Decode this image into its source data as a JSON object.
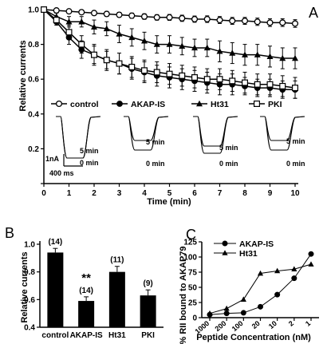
{
  "chart_data": [
    {
      "panel": "A",
      "type": "line",
      "xlabel": "Time (min)",
      "ylabel": "Relative currents",
      "xlim": [
        0,
        10
      ],
      "ylim": [
        0,
        1.0
      ],
      "xticks": [
        "0",
        "1",
        "2",
        "3",
        "4",
        "5",
        "6",
        "7",
        "8",
        "9",
        "10"
      ],
      "yticks": [
        "0.2",
        "0.4",
        "0.6",
        "0.8",
        "1.0"
      ],
      "series": [
        {
          "name": "control",
          "marker": "open-circle",
          "x": [
            0,
            0.5,
            1,
            1.5,
            2,
            2.5,
            3,
            3.5,
            4,
            4.5,
            5,
            5.5,
            6,
            6.5,
            7,
            7.5,
            8,
            8.5,
            9,
            9.5,
            10
          ],
          "y": [
            1.0,
            0.995,
            0.99,
            0.985,
            0.98,
            0.975,
            0.97,
            0.965,
            0.96,
            0.955,
            0.955,
            0.95,
            0.945,
            0.945,
            0.94,
            0.935,
            0.935,
            0.93,
            0.925,
            0.925,
            0.92
          ],
          "err": [
            0,
            0.01,
            0.01,
            0.012,
            0.012,
            0.014,
            0.014,
            0.015,
            0.016,
            0.016,
            0.017,
            0.018,
            0.018,
            0.019,
            0.02,
            0.02,
            0.02,
            0.021,
            0.022,
            0.022,
            0.022
          ]
        },
        {
          "name": "AKAP-IS",
          "marker": "filled-circle",
          "x": [
            0,
            0.5,
            1,
            1.5,
            2,
            2.5,
            3,
            3.5,
            4,
            4.5,
            5,
            5.5,
            6,
            6.5,
            7,
            7.5,
            8,
            8.5,
            9,
            9.5,
            10
          ],
          "y": [
            1.0,
            0.93,
            0.84,
            0.77,
            0.74,
            0.71,
            0.69,
            0.66,
            0.64,
            0.62,
            0.61,
            0.6,
            0.59,
            0.58,
            0.57,
            0.57,
            0.56,
            0.55,
            0.55,
            0.54,
            0.54
          ],
          "err": [
            0,
            0.02,
            0.04,
            0.05,
            0.05,
            0.05,
            0.06,
            0.06,
            0.06,
            0.06,
            0.06,
            0.06,
            0.06,
            0.06,
            0.06,
            0.06,
            0.05,
            0.05,
            0.05,
            0.05,
            0.05
          ]
        },
        {
          "name": "Ht31",
          "marker": "filled-triangle",
          "x": [
            0,
            0.5,
            1,
            1.5,
            2,
            2.5,
            3,
            3.5,
            4,
            4.5,
            5,
            5.5,
            6,
            6.5,
            7,
            7.5,
            8,
            8.5,
            9,
            9.5,
            10
          ],
          "y": [
            1.0,
            0.96,
            0.93,
            0.93,
            0.9,
            0.89,
            0.86,
            0.84,
            0.82,
            0.8,
            0.8,
            0.79,
            0.78,
            0.78,
            0.76,
            0.75,
            0.74,
            0.74,
            0.73,
            0.72,
            0.72
          ],
          "err": [
            0,
            0.02,
            0.03,
            0.03,
            0.04,
            0.04,
            0.05,
            0.05,
            0.05,
            0.05,
            0.05,
            0.05,
            0.05,
            0.05,
            0.06,
            0.06,
            0.06,
            0.06,
            0.06,
            0.06,
            0.06
          ]
        },
        {
          "name": "PKI",
          "marker": "open-square",
          "x": [
            0,
            0.5,
            1,
            1.5,
            2,
            2.5,
            3,
            3.5,
            4,
            4.5,
            5,
            5.5,
            6,
            6.5,
            7,
            7.5,
            8,
            8.5,
            9,
            9.5,
            10
          ],
          "y": [
            1.0,
            0.94,
            0.87,
            0.8,
            0.74,
            0.71,
            0.69,
            0.67,
            0.65,
            0.64,
            0.63,
            0.62,
            0.61,
            0.6,
            0.6,
            0.59,
            0.58,
            0.57,
            0.57,
            0.56,
            0.55
          ],
          "err": [
            0,
            0.02,
            0.04,
            0.05,
            0.06,
            0.06,
            0.06,
            0.06,
            0.06,
            0.06,
            0.06,
            0.06,
            0.06,
            0.06,
            0.06,
            0.06,
            0.06,
            0.06,
            0.06,
            0.06,
            0.06
          ]
        }
      ],
      "inset_labels": {
        "top": "5 min",
        "bottom": "0 min"
      },
      "scale_bar": {
        "y": "1nA",
        "x": "400 ms"
      }
    },
    {
      "panel": "B",
      "type": "bar",
      "ylabel": "Relative currents",
      "ylim": [
        0.4,
        1.0
      ],
      "yticks": [
        "0.4",
        "0.6",
        "0.8",
        "1.0"
      ],
      "categories": [
        "control",
        "AKAP-IS",
        "Ht31",
        "PKI"
      ],
      "values": [
        0.94,
        0.59,
        0.8,
        0.63
      ],
      "err": [
        0.03,
        0.03,
        0.04,
        0.04
      ],
      "n_labels": [
        "(14)",
        "(14)",
        "(11)",
        "(9)"
      ],
      "significance": [
        "",
        "**",
        "",
        ""
      ]
    },
    {
      "panel": "C",
      "type": "line",
      "xlabel": "Peptide Concentration (nM)",
      "ylabel": "% RII bound to AKAP79",
      "ylim": [
        0,
        125
      ],
      "yticks": [
        "0",
        "25",
        "50",
        "75",
        "100",
        "125"
      ],
      "categories": [
        "1000",
        "200",
        "100",
        "20",
        "10",
        "2",
        "1"
      ],
      "series": [
        {
          "name": "AKAP-IS",
          "marker": "filled-circle",
          "values": [
            5,
            7,
            8,
            18,
            38,
            65,
            105
          ]
        },
        {
          "name": "Ht31",
          "marker": "filled-triangle",
          "values": [
            7,
            15,
            30,
            73,
            77,
            80,
            88
          ]
        }
      ]
    }
  ],
  "panels": {
    "A": "A",
    "B": "B",
    "C": "C"
  }
}
